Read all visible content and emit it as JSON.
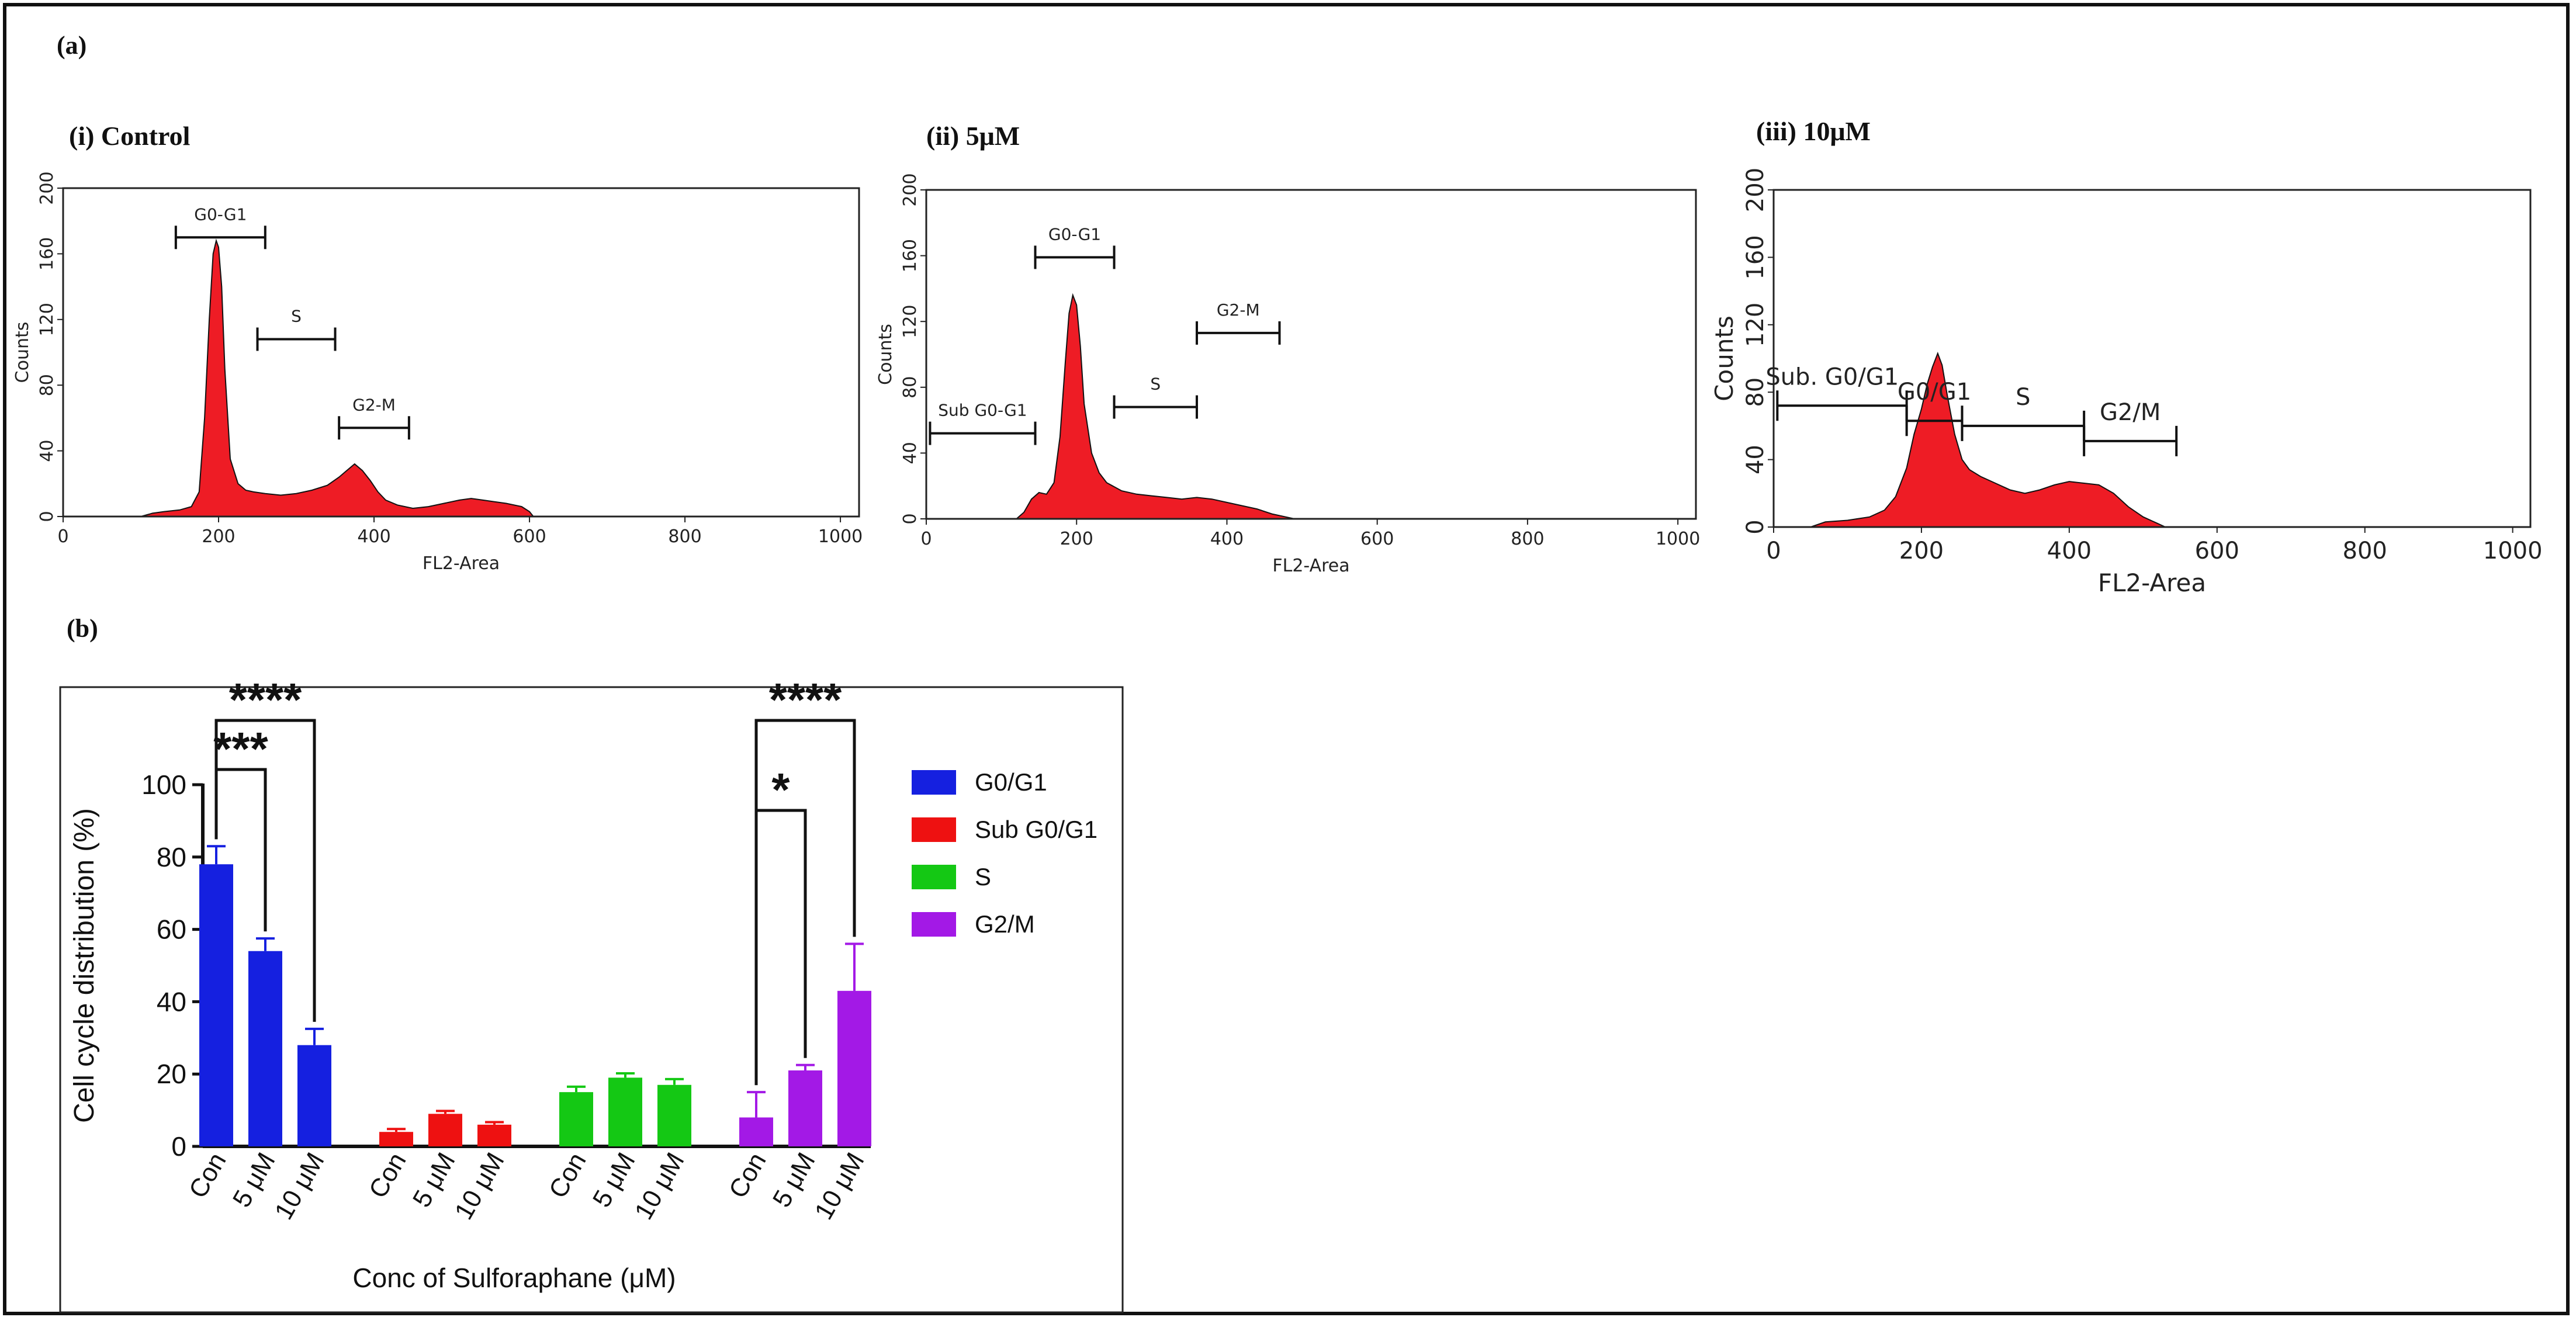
{
  "panel_a_label": "(a)",
  "panel_b_label": "(b)",
  "colors": {
    "hist_fill": "#ee1c25",
    "g0g1": "#1520e0",
    "subg0g1": "#ee1111",
    "s": "#14c814",
    "g2m": "#a319e6"
  },
  "chart_data": [
    {
      "type": "area",
      "title": "(i) Control",
      "xlabel": "FL2-Area",
      "ylabel": "Counts",
      "xlim": [
        0,
        1024
      ],
      "ylim": [
        0,
        200
      ],
      "xticks": [
        0,
        200,
        400,
        600,
        800,
        1000
      ],
      "yticks": [
        0,
        40,
        80,
        120,
        160,
        200
      ],
      "x": [
        100,
        115,
        130,
        150,
        165,
        175,
        182,
        188,
        193,
        197,
        200,
        204,
        208,
        215,
        225,
        235,
        245,
        260,
        280,
        300,
        320,
        340,
        355,
        365,
        375,
        385,
        395,
        405,
        415,
        430,
        450,
        470,
        490,
        510,
        525,
        540,
        555,
        570,
        590,
        600,
        605
      ],
      "y": [
        0,
        2,
        3,
        4,
        6,
        15,
        60,
        120,
        160,
        168,
        164,
        140,
        90,
        35,
        20,
        16,
        15,
        14,
        13,
        14,
        16,
        19,
        24,
        28,
        32,
        28,
        22,
        15,
        10,
        7,
        5,
        6,
        8,
        10,
        11,
        10,
        9,
        8,
        6,
        3,
        0
      ],
      "gates": [
        {
          "label": "G0-G1",
          "x1": 145,
          "x2": 260,
          "y": 170
        },
        {
          "label": "S",
          "x1": 250,
          "x2": 350,
          "y": 108
        },
        {
          "label": "G2-M",
          "x1": 355,
          "x2": 445,
          "y": 54
        }
      ]
    },
    {
      "type": "area",
      "title": "(ii) 5μM",
      "xlabel": "FL2-Area",
      "ylabel": "Counts",
      "xlim": [
        0,
        1024
      ],
      "ylim": [
        0,
        200
      ],
      "xticks": [
        0,
        200,
        400,
        600,
        800,
        1000
      ],
      "yticks": [
        0,
        40,
        80,
        120,
        160,
        200
      ],
      "x": [
        120,
        130,
        140,
        150,
        160,
        170,
        178,
        185,
        190,
        195,
        200,
        205,
        210,
        220,
        230,
        240,
        260,
        280,
        300,
        320,
        340,
        360,
        380,
        400,
        420,
        440,
        460,
        480,
        490
      ],
      "y": [
        0,
        4,
        12,
        16,
        15,
        22,
        50,
        95,
        125,
        136,
        130,
        105,
        70,
        40,
        28,
        22,
        17,
        15,
        14,
        13,
        12,
        13,
        12,
        10,
        8,
        6,
        3,
        1,
        0
      ],
      "gates": [
        {
          "label": "Sub G0-G1",
          "x1": 5,
          "x2": 145,
          "y": 52
        },
        {
          "label": "G0-G1",
          "x1": 145,
          "x2": 250,
          "y": 159
        },
        {
          "label": "S",
          "x1": 250,
          "x2": 360,
          "y": 68
        },
        {
          "label": "G2-M",
          "x1": 360,
          "x2": 470,
          "y": 113
        }
      ]
    },
    {
      "type": "area",
      "title": "(iii) 10μM",
      "xlabel": "FL2-Area",
      "ylabel": "Counts",
      "xlim": [
        0,
        1024
      ],
      "ylim": [
        0,
        200
      ],
      "xticks": [
        0,
        200,
        400,
        600,
        800,
        1000
      ],
      "yticks": [
        0,
        40,
        80,
        120,
        160,
        200
      ],
      "x": [
        50,
        70,
        100,
        130,
        150,
        165,
        180,
        190,
        200,
        208,
        215,
        222,
        228,
        235,
        245,
        255,
        265,
        280,
        300,
        320,
        340,
        360,
        380,
        400,
        420,
        440,
        460,
        480,
        500,
        520,
        530
      ],
      "y": [
        0,
        3,
        4,
        6,
        10,
        18,
        35,
        55,
        70,
        85,
        95,
        103,
        96,
        78,
        55,
        40,
        34,
        30,
        26,
        22,
        20,
        22,
        25,
        27,
        26,
        25,
        20,
        12,
        6,
        2,
        0
      ],
      "gates": [
        {
          "label": "Sub. G0/G1",
          "x1": 5,
          "x2": 180,
          "y": 72
        },
        {
          "label": "G0/G1",
          "x1": 180,
          "x2": 255,
          "y": 63
        },
        {
          "label": "S",
          "x1": 255,
          "x2": 420,
          "y": 60
        },
        {
          "label": "G2/M",
          "x1": 420,
          "x2": 545,
          "y": 51
        }
      ]
    },
    {
      "type": "bar",
      "xlabel": "Conc of Sulforaphane (μM)",
      "ylabel": "Cell cycle distribution (%)",
      "ylim": [
        0,
        100
      ],
      "yticks": [
        0,
        20,
        40,
        60,
        80,
        100
      ],
      "categories": [
        "Con",
        "5 μM",
        "10 μM"
      ],
      "series": [
        {
          "name": "G0/G1",
          "values": [
            78,
            54,
            28
          ],
          "errors": [
            5,
            3.5,
            4.5
          ]
        },
        {
          "name": "Sub G0/G1",
          "values": [
            4,
            9,
            6
          ],
          "errors": [
            0.8,
            0.8,
            0.7
          ]
        },
        {
          "name": "S",
          "values": [
            15,
            19,
            17
          ],
          "errors": [
            1.5,
            1.2,
            1.6
          ]
        },
        {
          "name": "G2/M",
          "values": [
            8,
            21,
            43
          ],
          "errors": [
            7,
            1.5,
            13
          ]
        }
      ],
      "significance": [
        {
          "series": "G0/G1",
          "from": "Con",
          "to": "5 μM",
          "label": "***"
        },
        {
          "series": "G0/G1",
          "from": "Con",
          "to": "10 μM",
          "label": "****"
        },
        {
          "series": "G2/M",
          "from": "Con",
          "to": "5 μM",
          "label": "*"
        },
        {
          "series": "G2/M",
          "from": "Con",
          "to": "10 μM",
          "label": "****"
        }
      ]
    }
  ]
}
